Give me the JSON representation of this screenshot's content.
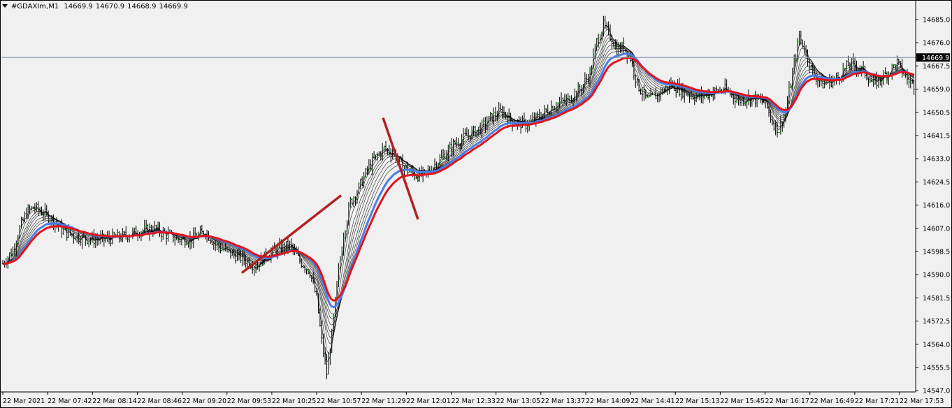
{
  "header": {
    "symbol": "#GDAXIm,M1",
    "open": "14669.9",
    "high": "14670.9",
    "low": "14668.9",
    "close": "14669.9"
  },
  "colors": {
    "background": "#f0f0f0",
    "bar": "#000000",
    "bullish_tick": "#00c000",
    "ma_thin": "#000000",
    "ma_blue": "#4a7ee8",
    "ma_red": "#e0141c",
    "trendline": "#b22222",
    "current_price_line": "#8090a8",
    "price_tag_bg": "#000000"
  },
  "chart_data": {
    "type": "candlestick-bars",
    "symbol": "#GDAXIm",
    "timeframe": "M1",
    "current_price": 14669.9,
    "price_tag": "14669.9",
    "ylim": [
      14545,
      14691
    ],
    "y_ticks": [
      "14685.0",
      "14676.0",
      "14667.5",
      "14659.0",
      "14650.5",
      "14641.5",
      "14633.0",
      "14624.5",
      "14616.0",
      "14607.0",
      "14598.5",
      "14590.0",
      "14581.5",
      "14572.5",
      "14564.0",
      "14555.5",
      "14547.0"
    ],
    "x_ticks": [
      "22 Mar 2021",
      "22 Mar 07:42",
      "22 Mar 08:14",
      "22 Mar 08:46",
      "22 Mar 09:20",
      "22 Mar 09:53",
      "22 Mar 10:25",
      "22 Mar 10:57",
      "22 Mar 11:29",
      "22 Mar 12:01",
      "22 Mar 12:33",
      "22 Mar 13:05",
      "22 Mar 13:37",
      "22 Mar 14:09",
      "22 Mar 14:41",
      "22 Mar 15:13",
      "22 Mar 15:45",
      "22 Mar 16:17",
      "22 Mar 16:49",
      "22 Mar 17:21",
      "22 Mar 17:53"
    ],
    "price_path": [
      [
        0,
        14593
      ],
      [
        6,
        14598
      ],
      [
        10,
        14606
      ],
      [
        14,
        14612
      ],
      [
        18,
        14614
      ],
      [
        24,
        14612
      ],
      [
        30,
        14609
      ],
      [
        36,
        14605
      ],
      [
        44,
        14603
      ],
      [
        52,
        14602
      ],
      [
        60,
        14602
      ],
      [
        70,
        14603
      ],
      [
        80,
        14605
      ],
      [
        90,
        14606
      ],
      [
        96,
        14604
      ],
      [
        104,
        14602
      ],
      [
        112,
        14602
      ],
      [
        120,
        14605
      ],
      [
        126,
        14600
      ],
      [
        134,
        14597
      ],
      [
        142,
        14595
      ],
      [
        150,
        14592
      ],
      [
        156,
        14596
      ],
      [
        162,
        14598
      ],
      [
        170,
        14600
      ],
      [
        176,
        14594
      ],
      [
        182,
        14590
      ],
      [
        186,
        14580
      ],
      [
        189,
        14564
      ],
      [
        192,
        14552
      ],
      [
        195,
        14566
      ],
      [
        198,
        14585
      ],
      [
        202,
        14604
      ],
      [
        206,
        14616
      ],
      [
        210,
        14620
      ],
      [
        216,
        14628
      ],
      [
        220,
        14632
      ],
      [
        226,
        14636
      ],
      [
        232,
        14634
      ],
      [
        236,
        14630
      ],
      [
        240,
        14628
      ],
      [
        244,
        14626
      ],
      [
        250,
        14626
      ],
      [
        256,
        14630
      ],
      [
        262,
        14634
      ],
      [
        268,
        14638
      ],
      [
        276,
        14641
      ],
      [
        284,
        14644
      ],
      [
        290,
        14648
      ],
      [
        296,
        14650
      ],
      [
        302,
        14646
      ],
      [
        310,
        14645
      ],
      [
        318,
        14648
      ],
      [
        326,
        14652
      ],
      [
        334,
        14654
      ],
      [
        342,
        14658
      ],
      [
        348,
        14664
      ],
      [
        352,
        14676
      ],
      [
        356,
        14682
      ],
      [
        360,
        14678
      ],
      [
        364,
        14673
      ],
      [
        368,
        14674
      ],
      [
        372,
        14670
      ],
      [
        376,
        14660
      ],
      [
        382,
        14654
      ],
      [
        388,
        14656
      ],
      [
        396,
        14660
      ],
      [
        404,
        14657
      ],
      [
        412,
        14655
      ],
      [
        420,
        14657
      ],
      [
        428,
        14658
      ],
      [
        436,
        14654
      ],
      [
        444,
        14655
      ],
      [
        452,
        14653
      ],
      [
        456,
        14646
      ],
      [
        460,
        14643
      ],
      [
        464,
        14650
      ],
      [
        468,
        14664
      ],
      [
        472,
        14678
      ],
      [
        476,
        14672
      ],
      [
        480,
        14664
      ],
      [
        486,
        14660
      ],
      [
        494,
        14662
      ],
      [
        502,
        14668
      ],
      [
        510,
        14665
      ],
      [
        516,
        14660
      ],
      [
        524,
        14664
      ],
      [
        530,
        14668
      ],
      [
        536,
        14662
      ],
      [
        540,
        14660
      ]
    ],
    "ma_offsets": [
      0.3,
      0.8,
      1.3,
      1.8,
      2.4,
      3.0,
      3.7,
      4.4
    ],
    "trendlines": [
      {
        "from": [
          "22 Mar 09:53",
          14589.5
        ],
        "to": [
          "22 Mar 10:57",
          14618.5
        ]
      },
      {
        "from": [
          "22 Mar 11:29",
          14647.5
        ],
        "to": [
          "22 Mar 12:01",
          14609.5
        ]
      }
    ],
    "grid": false,
    "legend": "none"
  }
}
